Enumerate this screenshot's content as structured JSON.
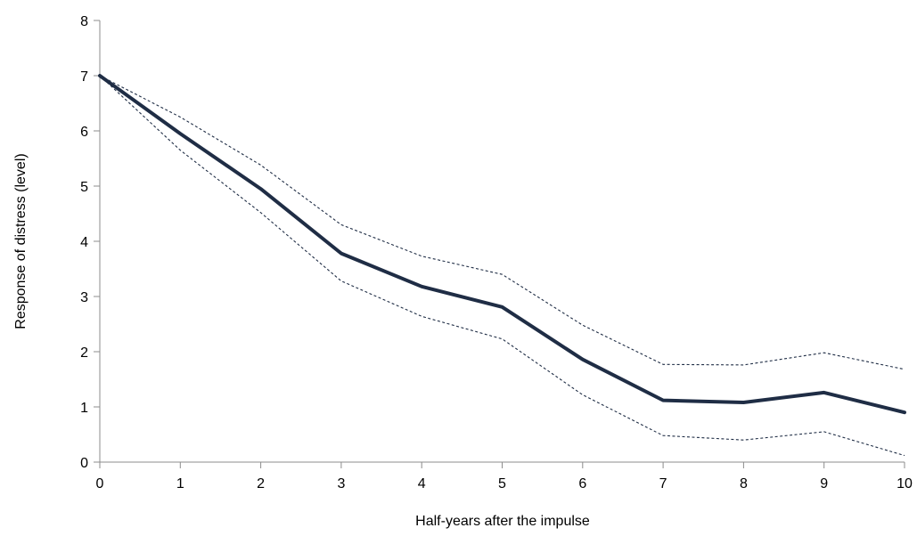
{
  "chart_data": {
    "type": "line",
    "title": "",
    "xlabel": "Half-years after the impulse",
    "ylabel": "Response of distress (level)",
    "xlim": [
      0,
      10
    ],
    "ylim": [
      0,
      8
    ],
    "x_ticks": [
      0,
      1,
      2,
      3,
      4,
      5,
      6,
      7,
      8,
      9,
      10
    ],
    "y_ticks": [
      0,
      1,
      2,
      3,
      4,
      5,
      6,
      7,
      8
    ],
    "grid": false,
    "legend": "none",
    "x": [
      0,
      1,
      2,
      3,
      4,
      5,
      6,
      7,
      8,
      9,
      10
    ],
    "series": [
      {
        "role": "estimate",
        "style": "solid",
        "color": "#1f2d45",
        "values": [
          7.0,
          5.95,
          4.95,
          3.78,
          3.18,
          2.81,
          1.86,
          1.12,
          1.08,
          1.26,
          0.9
        ]
      },
      {
        "role": "upper-band",
        "style": "dashed",
        "color": "#1f2d45",
        "values": [
          7.0,
          6.25,
          5.38,
          4.3,
          3.73,
          3.4,
          2.48,
          1.77,
          1.76,
          1.98,
          1.68
        ]
      },
      {
        "role": "lower-band",
        "style": "dashed",
        "color": "#1f2d45",
        "values": [
          7.0,
          5.65,
          4.52,
          3.28,
          2.64,
          2.23,
          1.22,
          0.48,
          0.4,
          0.55,
          0.12
        ]
      }
    ]
  }
}
